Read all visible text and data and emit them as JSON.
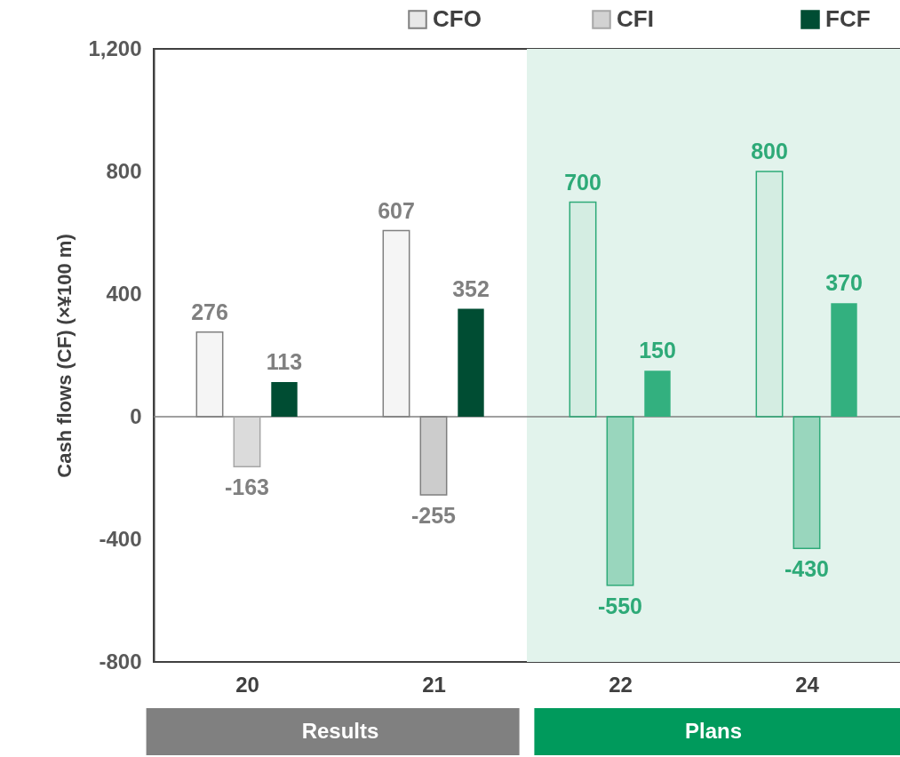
{
  "chart_data": {
    "type": "bar",
    "ylabel": "Cash flows (CF) (×¥100 m)",
    "categories": [
      "20",
      "21",
      "22",
      "24"
    ],
    "series": [
      {
        "name": "CFO",
        "values": [
          276,
          607,
          700,
          800
        ],
        "colors": [
          "#808080",
          "#808080",
          "#2eaa78",
          "#2eaa78"
        ]
      },
      {
        "name": "CFI",
        "values": [
          -163,
          -255,
          -550,
          -430
        ],
        "colors": [
          "#a6a6a6",
          "#7f7f7f",
          "#2eaa78",
          "#2eaa78"
        ]
      },
      {
        "name": "FCF",
        "values": [
          113,
          352,
          150,
          370
        ],
        "colors": [
          "#004d33",
          "#004d33",
          "#33b07f",
          "#33b07f"
        ]
      }
    ],
    "ylim": [
      -800,
      1200
    ],
    "yticks": [
      {
        "value": -800,
        "label": "-800"
      },
      {
        "value": -400,
        "label": "-400"
      },
      0,
      400,
      800,
      {
        "value": 1200,
        "label": "1,200"
      }
    ],
    "data_labels": true,
    "legend": "top",
    "grid": false,
    "bands": [
      {
        "axis": "x",
        "from": "22",
        "to": "24",
        "color": "#e2f3ec"
      }
    ],
    "ref_lines": [
      {
        "axis": "y",
        "value": 0,
        "color": "#808080"
      }
    ],
    "annotations": [
      "Results",
      "Plans"
    ]
  }
}
